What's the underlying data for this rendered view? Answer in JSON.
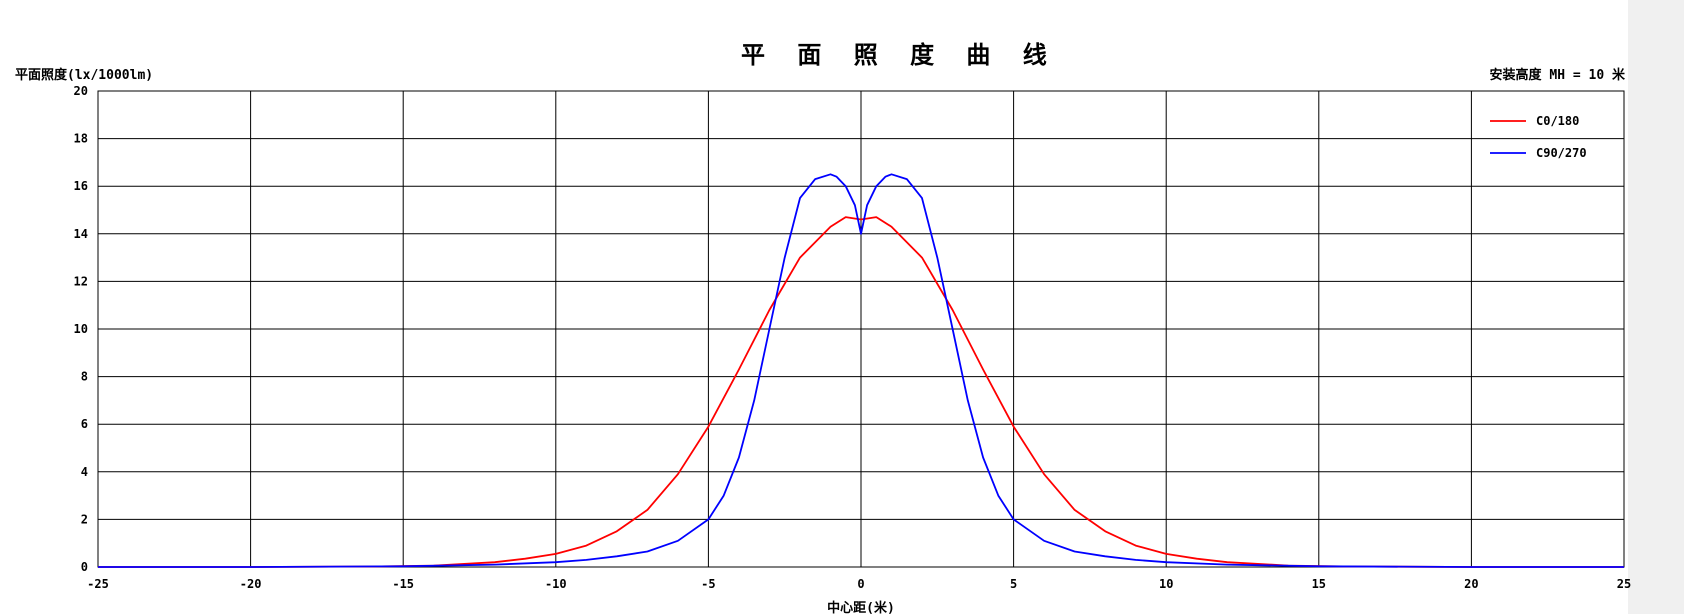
{
  "chart_data": {
    "type": "line",
    "title": "平 面 照 度 曲 线",
    "ylabel": "平面照度(lx/1000lm)",
    "xlabel": "中心距(米)",
    "mounting_height_label": "安装高度 MH = 10 米",
    "xlim": [
      -25,
      25
    ],
    "ylim": [
      0,
      20
    ],
    "x_ticks": [
      -25,
      -20,
      -15,
      -10,
      -5,
      0,
      5,
      10,
      15,
      20,
      25
    ],
    "y_ticks": [
      0,
      2,
      4,
      6,
      8,
      10,
      12,
      14,
      16,
      18,
      20
    ],
    "x_tick_labels": [
      "-25",
      "-20",
      "-15",
      "-10",
      "-5",
      "0",
      "5",
      "10",
      "15",
      "20",
      "25"
    ],
    "y_tick_labels": [
      "0",
      "2",
      "4",
      "6",
      "8",
      "10",
      "12",
      "14",
      "16",
      "18",
      "20"
    ],
    "grid": true,
    "legend_position": "top-right",
    "series": [
      {
        "name": "C0/180",
        "color": "#ff0000",
        "x": [
          -25,
          -20,
          -16,
          -14,
          -12,
          -11,
          -10,
          -9,
          -8,
          -7,
          -6,
          -5,
          -4,
          -3,
          -2,
          -1,
          -0.5,
          0,
          0.5,
          1,
          2,
          3,
          4,
          5,
          6,
          7,
          8,
          9,
          10,
          11,
          12,
          14,
          16,
          20,
          25
        ],
        "y": [
          0,
          0,
          0.02,
          0.06,
          0.2,
          0.35,
          0.55,
          0.9,
          1.5,
          2.4,
          3.9,
          5.9,
          8.3,
          10.8,
          13.0,
          14.3,
          14.7,
          14.6,
          14.7,
          14.3,
          13.0,
          10.8,
          8.3,
          5.9,
          3.9,
          2.4,
          1.5,
          0.9,
          0.55,
          0.35,
          0.2,
          0.06,
          0.02,
          0,
          0
        ]
      },
      {
        "name": "C90/270",
        "color": "#0000ff",
        "x": [
          -25,
          -20,
          -15,
          -12,
          -10,
          -9,
          -8,
          -7,
          -6,
          -5,
          -4.5,
          -4,
          -3.5,
          -3,
          -2.5,
          -2,
          -1.5,
          -1,
          -0.8,
          -0.5,
          -0.2,
          0,
          0.2,
          0.5,
          0.8,
          1,
          1.5,
          2,
          2.5,
          3,
          3.5,
          4,
          4.5,
          5,
          6,
          7,
          8,
          9,
          10,
          12,
          15,
          20,
          25
        ],
        "y": [
          0,
          0,
          0.03,
          0.1,
          0.2,
          0.3,
          0.45,
          0.65,
          1.1,
          2.0,
          3.0,
          4.6,
          7.0,
          10.0,
          13.0,
          15.5,
          16.3,
          16.5,
          16.4,
          16.0,
          15.2,
          14.0,
          15.2,
          16.0,
          16.4,
          16.5,
          16.3,
          15.5,
          13.0,
          10.0,
          7.0,
          4.6,
          3.0,
          2.0,
          1.1,
          0.65,
          0.45,
          0.3,
          0.2,
          0.1,
          0.03,
          0,
          0
        ]
      }
    ]
  }
}
